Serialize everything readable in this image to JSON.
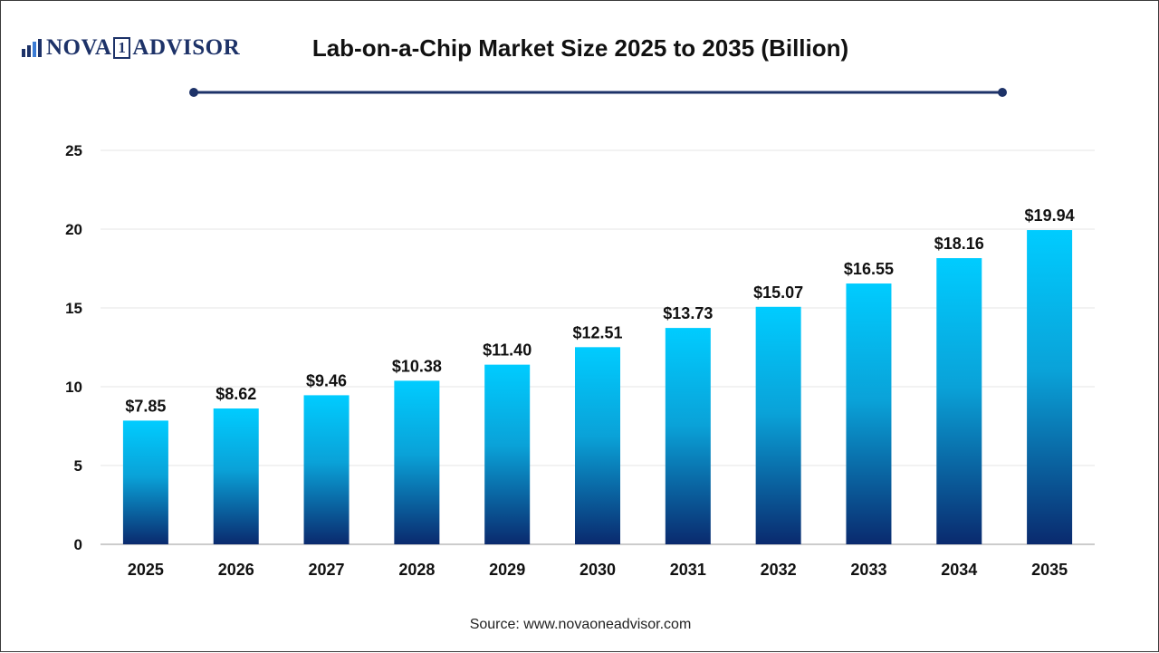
{
  "header": {
    "logo_text_1": "NOVA",
    "logo_text_one": "1",
    "logo_text_2": "ADVISOR",
    "title": "Lab-on-a-Chip Market Size 2025 to 2035 (Billion)"
  },
  "footer": {
    "source": "Source: www.novaoneadvisor.com"
  },
  "colors": {
    "bar_top": "#00ccff",
    "bar_bottom": "#0a2a6e",
    "deco_line": "#1d3268",
    "grid": "#e6e6e6",
    "axis": "#bbbbbb"
  },
  "chart_data": {
    "type": "bar",
    "title": "Lab-on-a-Chip Market Size 2025 to 2035 (Billion)",
    "xlabel": "",
    "ylabel": "",
    "categories": [
      "2025",
      "2026",
      "2027",
      "2028",
      "2029",
      "2030",
      "2031",
      "2032",
      "2033",
      "2034",
      "2035"
    ],
    "values": [
      7.85,
      8.62,
      9.46,
      10.38,
      11.4,
      12.51,
      13.73,
      15.07,
      16.55,
      18.16,
      19.94
    ],
    "data_labels": [
      "$7.85",
      "$8.62",
      "$9.46",
      "$10.38",
      "$11.40",
      "$12.51",
      "$13.73",
      "$15.07",
      "$16.55",
      "$18.16",
      "$19.94"
    ],
    "ylim": [
      0,
      25
    ],
    "yticks": [
      0,
      5,
      10,
      15,
      20,
      25
    ],
    "grid": true,
    "legend": "none"
  }
}
